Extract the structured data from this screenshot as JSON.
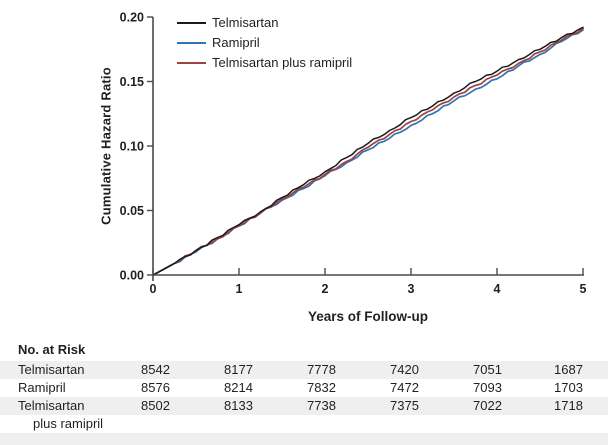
{
  "chart": {
    "y_tick_labels": [
      "0.00",
      "0.05",
      "0.10",
      "0.15",
      "0.20"
    ],
    "x_tick_labels": [
      "0",
      "1",
      "2",
      "3",
      "4",
      "5"
    ]
  },
  "chart_data": {
    "type": "line",
    "title": "",
    "xlabel": "Years of Follow-up",
    "ylabel": "Cumulative Hazard Ratio",
    "xlim": [
      0,
      5
    ],
    "ylim": [
      0,
      0.2
    ],
    "x_ticks": [
      0,
      1,
      2,
      3,
      4,
      5
    ],
    "y_ticks": [
      0.0,
      0.05,
      0.1,
      0.15,
      0.2
    ],
    "grid": false,
    "legend_position": "top-left-inside",
    "axis_color": "#4a4a4a",
    "text_color": "#231f20",
    "x": [
      0,
      0.25,
      0.5,
      0.75,
      1,
      1.25,
      1.5,
      1.75,
      2,
      2.25,
      2.5,
      2.75,
      3,
      3.25,
      3.5,
      3.75,
      4,
      4.25,
      4.5,
      4.75,
      5
    ],
    "series": [
      {
        "name": "Ramipril",
        "color": "#2f74b4",
        "width": 1.7,
        "values": [
          0,
          0.009,
          0.018,
          0.028,
          0.038,
          0.048,
          0.058,
          0.067,
          0.077,
          0.087,
          0.097,
          0.106,
          0.116,
          0.125,
          0.135,
          0.144,
          0.152,
          0.162,
          0.171,
          0.181,
          0.19
        ]
      },
      {
        "name": "Telmisartan plus ramipril",
        "color": "#a0423f",
        "width": 1.7,
        "values": [
          0,
          0.009,
          0.019,
          0.028,
          0.038,
          0.048,
          0.059,
          0.068,
          0.078,
          0.088,
          0.099,
          0.109,
          0.119,
          0.128,
          0.138,
          0.147,
          0.155,
          0.164,
          0.173,
          0.182,
          0.191
        ]
      },
      {
        "name": "Telmisartan",
        "color": "#1c1a1b",
        "width": 1.5,
        "values": [
          0,
          0.009,
          0.019,
          0.029,
          0.039,
          0.049,
          0.06,
          0.07,
          0.08,
          0.091,
          0.102,
          0.112,
          0.122,
          0.131,
          0.141,
          0.15,
          0.158,
          0.167,
          0.175,
          0.184,
          0.192
        ]
      }
    ],
    "legend_order": [
      "Telmisartan",
      "Ramipril",
      "Telmisartan plus ramipril"
    ]
  },
  "legend": {
    "items": [
      {
        "label": "Telmisartan",
        "color": "#1c1a1b"
      },
      {
        "label": "Ramipril",
        "color": "#2f74b4"
      },
      {
        "label": "Telmisartan plus ramipril",
        "color": "#a0423f"
      }
    ]
  },
  "risk_table": {
    "title": "No. at Risk",
    "rows": [
      {
        "label_lines": [
          "Telmisartan"
        ],
        "values": [
          "8542",
          "8177",
          "7778",
          "7420",
          "7051",
          "1687"
        ]
      },
      {
        "label_lines": [
          "Ramipril"
        ],
        "values": [
          "8576",
          "8214",
          "7832",
          "7472",
          "7093",
          "1703"
        ]
      },
      {
        "label_lines": [
          "Telmisartan",
          "plus ramipril"
        ],
        "values": [
          "8502",
          "8133",
          "7738",
          "7375",
          "7022",
          "1718"
        ]
      }
    ]
  }
}
